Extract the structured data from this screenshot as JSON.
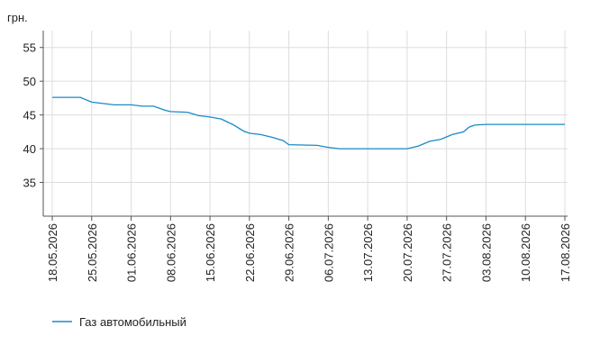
{
  "chart_data": {
    "type": "line",
    "y_label": "грн.",
    "x": [
      "18.05.2026",
      "23.05.2026",
      "25.05.2026",
      "27.05.2026",
      "29.05.2026",
      "01.06.2026",
      "03.06.2026",
      "05.06.2026",
      "07.06.2026",
      "08.06.2026",
      "11.06.2026",
      "13.06.2026",
      "15.06.2026",
      "17.06.2026",
      "19.06.2026",
      "21.06.2026",
      "22.06.2026",
      "24.06.2026",
      "26.06.2026",
      "28.06.2026",
      "29.06.2026",
      "04.07.2026",
      "06.07.2026",
      "08.07.2026",
      "20.07.2026",
      "22.07.2026",
      "24.07.2026",
      "26.07.2026",
      "28.07.2026",
      "30.07.2026",
      "31.07.2026",
      "01.08.2026",
      "03.08.2026",
      "17.08.2026"
    ],
    "series": [
      {
        "name": "Газ автомобильный",
        "color": "#1a8ac6",
        "values": [
          47.6,
          47.6,
          46.9,
          46.7,
          46.5,
          46.5,
          46.3,
          46.3,
          45.7,
          45.5,
          45.4,
          44.9,
          44.7,
          44.4,
          43.6,
          42.6,
          42.3,
          42.1,
          41.7,
          41.2,
          40.6,
          40.5,
          40.2,
          40.0,
          40.0,
          40.4,
          41.1,
          41.4,
          42.1,
          42.5,
          43.2,
          43.5,
          43.6,
          43.6
        ]
      }
    ],
    "xlim": [
      "18.05.2026",
      "17.08.2026"
    ],
    "xticks": [
      "18.05.2026",
      "25.05.2026",
      "01.06.2026",
      "08.06.2026",
      "15.06.2026",
      "22.06.2026",
      "29.06.2026",
      "06.07.2026",
      "13.07.2026",
      "20.07.2026",
      "27.07.2026",
      "03.08.2026",
      "10.08.2026",
      "17.08.2026"
    ],
    "ylim": [
      30,
      57.5
    ],
    "yticks": [
      35,
      40,
      45,
      50,
      55
    ],
    "grid": true
  }
}
